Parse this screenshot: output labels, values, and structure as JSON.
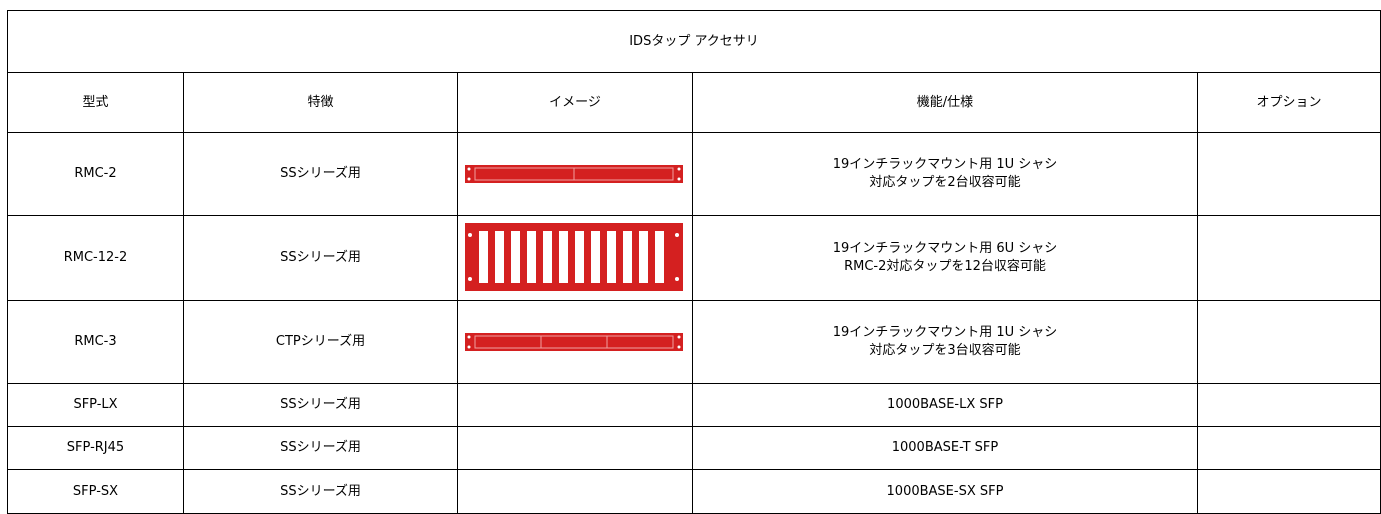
{
  "table": {
    "title": "IDSタップ アクセサリ",
    "headers": [
      "型式",
      "特徴",
      "イメージ",
      "機能/仕様",
      "オプション"
    ],
    "rows": [
      {
        "model": "RMC-2",
        "feature": "SSシリーズ用",
        "spec": [
          "19インチラックマウント用 1U シャシ",
          "対応タップを2台収容可能"
        ]
      },
      {
        "model": "RMC-12-2",
        "feature": "SSシリーズ用",
        "spec": [
          "19インチラックマウント用 6U シャシ",
          "RMC-2対応タップを12台収容可能"
        ]
      },
      {
        "model": "RMC-3",
        "feature": "CTPシリーズ用",
        "spec": [
          "19インチラックマウント用 1U シャシ",
          "対応タップを3台収容可能"
        ]
      },
      {
        "model": "SFP-LX",
        "feature": "SSシリーズ用",
        "spec": [
          "1000BASE-LX SFP"
        ]
      },
      {
        "model": "SFP-RJ45",
        "feature": "SSシリーズ用",
        "spec": [
          "1000BASE-T SFP"
        ]
      },
      {
        "model": "SFP-SX",
        "feature": "SSシリーズ用",
        "spec": [
          "1000BASE-SX SFP"
        ]
      }
    ]
  }
}
